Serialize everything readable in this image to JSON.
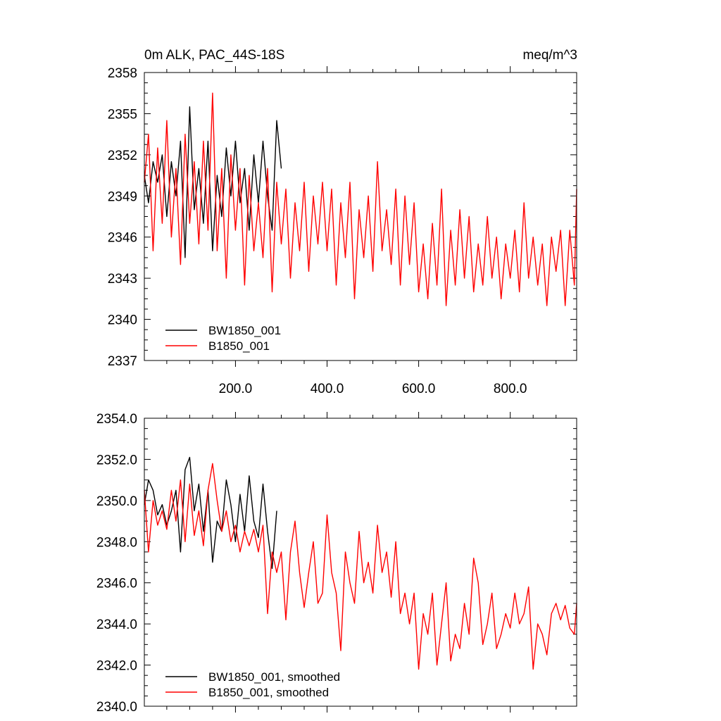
{
  "colors": {
    "BW1850_001": "#000000",
    "B1850_001": "#ff0000"
  },
  "chart_data": [
    {
      "type": "line",
      "title": "0m ALK, PAC_44S-18S",
      "units_label": "meq/m^3",
      "xlim": [
        1,
        945
      ],
      "ylim": [
        2337,
        2358
      ],
      "x_ticks": [
        200,
        400,
        600,
        800
      ],
      "x_tick_labels": [
        "200.0",
        "400.0",
        "600.0",
        "800.0"
      ],
      "y_ticks": [
        2337,
        2340,
        2343,
        2346,
        2349,
        2352,
        2355,
        2358
      ],
      "y_tick_labels": [
        "2337",
        "2340",
        "2343",
        "2346",
        "2349",
        "2352",
        "2355",
        "2358"
      ],
      "legend_location": "bottom-left",
      "series": [
        {
          "name": "BW1850_001",
          "x": [
            1,
            10,
            20,
            30,
            40,
            50,
            60,
            70,
            80,
            90,
            100,
            110,
            120,
            130,
            140,
            150,
            160,
            170,
            180,
            190,
            200,
            210,
            220,
            230,
            240,
            250,
            260,
            270,
            280,
            290,
            300
          ],
          "y": [
            2350.5,
            2348.5,
            2351.5,
            2350,
            2352,
            2347.5,
            2351.5,
            2349,
            2353,
            2344.5,
            2355.5,
            2348,
            2351,
            2347,
            2353,
            2345,
            2350.5,
            2347.5,
            2352.5,
            2349,
            2353,
            2348.5,
            2351,
            2346.5,
            2352,
            2348.5,
            2353,
            2349,
            2346.5,
            2354.5,
            2351
          ]
        },
        {
          "name": "B1850_001",
          "x": [
            1,
            10,
            20,
            30,
            40,
            50,
            60,
            70,
            80,
            90,
            100,
            110,
            120,
            130,
            140,
            150,
            160,
            170,
            180,
            190,
            200,
            210,
            220,
            230,
            240,
            250,
            260,
            270,
            280,
            290,
            300,
            310,
            320,
            330,
            340,
            350,
            360,
            370,
            380,
            390,
            400,
            410,
            420,
            430,
            440,
            450,
            460,
            470,
            480,
            490,
            500,
            510,
            520,
            530,
            540,
            550,
            560,
            570,
            580,
            590,
            600,
            610,
            620,
            630,
            640,
            650,
            660,
            670,
            680,
            690,
            700,
            710,
            720,
            730,
            740,
            750,
            760,
            770,
            780,
            790,
            800,
            810,
            820,
            830,
            840,
            850,
            860,
            870,
            880,
            890,
            900,
            910,
            920,
            930,
            940,
            945
          ],
          "y": [
            2350,
            2353.5,
            2345,
            2352.5,
            2347,
            2354.5,
            2346,
            2351,
            2344,
            2353.5,
            2347,
            2351.5,
            2345.5,
            2353,
            2346.5,
            2356.5,
            2345,
            2351,
            2343,
            2352,
            2346.5,
            2351,
            2342.5,
            2350.5,
            2345,
            2348.5,
            2344.5,
            2351,
            2342,
            2350,
            2345.5,
            2349.5,
            2343,
            2348.5,
            2345,
            2350,
            2343.5,
            2349,
            2345.5,
            2350,
            2345,
            2349.5,
            2342.5,
            2348.5,
            2344.5,
            2350,
            2341.5,
            2348,
            2344.5,
            2349,
            2343.5,
            2351.5,
            2345,
            2348,
            2344,
            2349.5,
            2342.5,
            2349,
            2344,
            2348.5,
            2342,
            2345.5,
            2341.5,
            2347,
            2342.5,
            2349.5,
            2341,
            2346.5,
            2342.5,
            2348,
            2343,
            2347.5,
            2342,
            2345.5,
            2342.5,
            2347.5,
            2343,
            2346,
            2341.5,
            2345.5,
            2343,
            2346.5,
            2342,
            2348.5,
            2343,
            2346,
            2342.5,
            2345.5,
            2341,
            2346,
            2343.5,
            2346.5,
            2341,
            2346.5,
            2342.5,
            2349.5
          ]
        }
      ]
    },
    {
      "type": "line",
      "xlim": [
        1,
        945
      ],
      "ylim": [
        2340,
        2354
      ],
      "x_ticks": [
        200,
        400,
        600,
        800
      ],
      "x_tick_labels": [],
      "y_ticks": [
        2340,
        2342,
        2344,
        2346,
        2348,
        2350,
        2352,
        2354
      ],
      "y_tick_labels": [
        "2340.0",
        "2342.0",
        "2344.0",
        "2346.0",
        "2348.0",
        "2350.0",
        "2352.0",
        "2354.0"
      ],
      "legend_location": "bottom-left",
      "series": [
        {
          "name": "BW1850_001, smoothed",
          "x": [
            1,
            10,
            20,
            30,
            40,
            50,
            60,
            70,
            80,
            90,
            100,
            110,
            120,
            130,
            140,
            150,
            160,
            170,
            180,
            190,
            200,
            210,
            220,
            230,
            240,
            250,
            260,
            270,
            280,
            290
          ],
          "y": [
            2349.8,
            2351,
            2350.5,
            2349.3,
            2349.8,
            2348.8,
            2349.5,
            2350.5,
            2347.5,
            2351.5,
            2352.1,
            2349.5,
            2350.8,
            2348.5,
            2350.5,
            2347,
            2349,
            2348.5,
            2351,
            2349.8,
            2348,
            2350.3,
            2348.5,
            2351.2,
            2349,
            2348.2,
            2350.8,
            2348.5,
            2346.7,
            2349.5
          ]
        },
        {
          "name": "B1850_001, smoothed",
          "x": [
            1,
            10,
            20,
            30,
            40,
            50,
            60,
            70,
            80,
            90,
            100,
            110,
            120,
            130,
            140,
            150,
            160,
            170,
            180,
            190,
            200,
            210,
            220,
            230,
            240,
            250,
            260,
            270,
            280,
            290,
            300,
            310,
            320,
            330,
            340,
            350,
            360,
            370,
            380,
            390,
            400,
            410,
            420,
            430,
            440,
            450,
            460,
            470,
            480,
            490,
            500,
            510,
            520,
            530,
            540,
            550,
            560,
            570,
            580,
            590,
            600,
            610,
            620,
            630,
            640,
            650,
            660,
            670,
            680,
            690,
            700,
            710,
            720,
            730,
            740,
            750,
            760,
            770,
            780,
            790,
            800,
            810,
            820,
            830,
            840,
            850,
            860,
            870,
            880,
            890,
            900,
            910,
            920,
            930,
            940,
            945
          ],
          "y": [
            2350.5,
            2347.5,
            2350,
            2348.8,
            2349.5,
            2348.6,
            2350.5,
            2349,
            2351,
            2348,
            2350.8,
            2348.3,
            2349.5,
            2347.8,
            2350.5,
            2351.8,
            2350,
            2348.5,
            2349.5,
            2348,
            2348.8,
            2347.5,
            2348.5,
            2347.8,
            2348.6,
            2347.5,
            2348.8,
            2344.5,
            2347.5,
            2346.5,
            2347.5,
            2344.2,
            2347.5,
            2349,
            2346.5,
            2344.8,
            2346.5,
            2348,
            2345,
            2345.5,
            2349.3,
            2346.5,
            2345.5,
            2342.7,
            2347.5,
            2346,
            2345,
            2348.5,
            2346,
            2347,
            2345.5,
            2348.8,
            2346.5,
            2347.5,
            2345.3,
            2348,
            2344.5,
            2345.5,
            2344,
            2345.5,
            2341.8,
            2344.5,
            2343.5,
            2345.5,
            2342,
            2344,
            2346,
            2342.2,
            2343.5,
            2342.8,
            2345,
            2343.5,
            2347.2,
            2346,
            2343,
            2344,
            2345.5,
            2342.8,
            2343.5,
            2344.5,
            2343.8,
            2345.5,
            2344,
            2344.5,
            2345.8,
            2341.8,
            2344,
            2343.5,
            2342.5,
            2344.5,
            2345,
            2344.2,
            2344.9,
            2343.8,
            2343.5,
            2345
          ]
        }
      ]
    }
  ]
}
